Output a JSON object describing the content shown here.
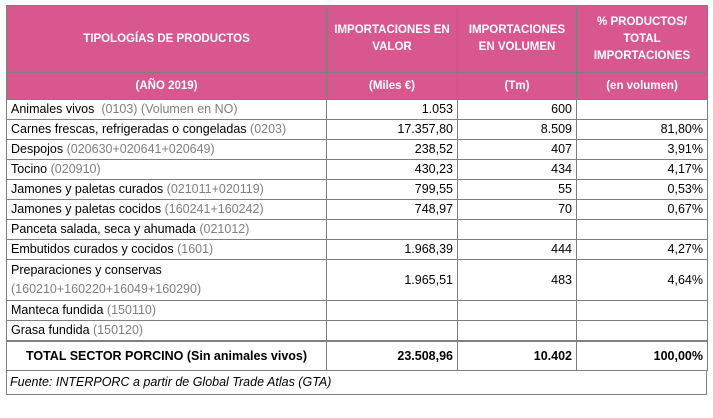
{
  "header": {
    "col1": "TIPOLOGÍAS DE PRODUCTOS",
    "col2": "IMPORTACIONES EN VALOR",
    "col3": "IMPORTACIONES EN VOLUMEN",
    "col4": "% PRODUCTOS/ TOTAL IMPORTACIONES",
    "sub1": "(AÑO 2019)",
    "sub2": "(Miles  €)",
    "sub3": "(Tm)",
    "sub4": "(en volumen)"
  },
  "rows": [
    {
      "name": "Animales vivos",
      "code": "(0103) (Volumen en NO)",
      "value": "1.053",
      "volume": "600",
      "pct": ""
    },
    {
      "name": "Carnes frescas, refrigeradas o congeladas",
      "code": "(0203)",
      "value": "17.357,80",
      "volume": "8.509",
      "pct": "81,80%"
    },
    {
      "name": "Despojos",
      "code": "(020630+020641+020649)",
      "value": "238,52",
      "volume": "407",
      "pct": "3,91%"
    },
    {
      "name": "Tocino",
      "code": "(020910)",
      "value": "430,23",
      "volume": "434",
      "pct": "4,17%"
    },
    {
      "name": "Jamones y paletas curados",
      "code": "(021011+020119)",
      "value": "799,55",
      "volume": "55",
      "pct": "0,53%"
    },
    {
      "name": "Jamones y paletas cocidos",
      "code": "(160241+160242)",
      "value": "748,97",
      "volume": "70",
      "pct": "0,67%"
    },
    {
      "name": "Panceta salada, seca y ahumada",
      "code": "(021012)",
      "value": "",
      "volume": "",
      "pct": ""
    },
    {
      "name": "Embutidos curados y cocidos",
      "code": "(1601)",
      "value": "1.968,39",
      "volume": "444",
      "pct": "4,27%"
    },
    {
      "name": "Preparaciones y conservas",
      "code": "(160210+160220+16049+160290)",
      "value": "1.965,51",
      "volume": "483",
      "pct": "4,64%"
    },
    {
      "name": "Manteca fundida",
      "code": "(150110)",
      "value": "",
      "volume": "",
      "pct": ""
    },
    {
      "name": "Grasa fundida",
      "code": "(150120)",
      "value": "",
      "volume": "",
      "pct": ""
    }
  ],
  "total": {
    "label": "TOTAL SECTOR PORCINO (Sin animales vivos)",
    "value": "23.508,96",
    "volume": "10.402",
    "pct": "100,00%"
  },
  "source": "Fuente: INTERPORC a partir de Global Trade Atlas (GTA)",
  "colors": {
    "header_bg": "#d9578f",
    "code_text": "#7f7f7f"
  }
}
